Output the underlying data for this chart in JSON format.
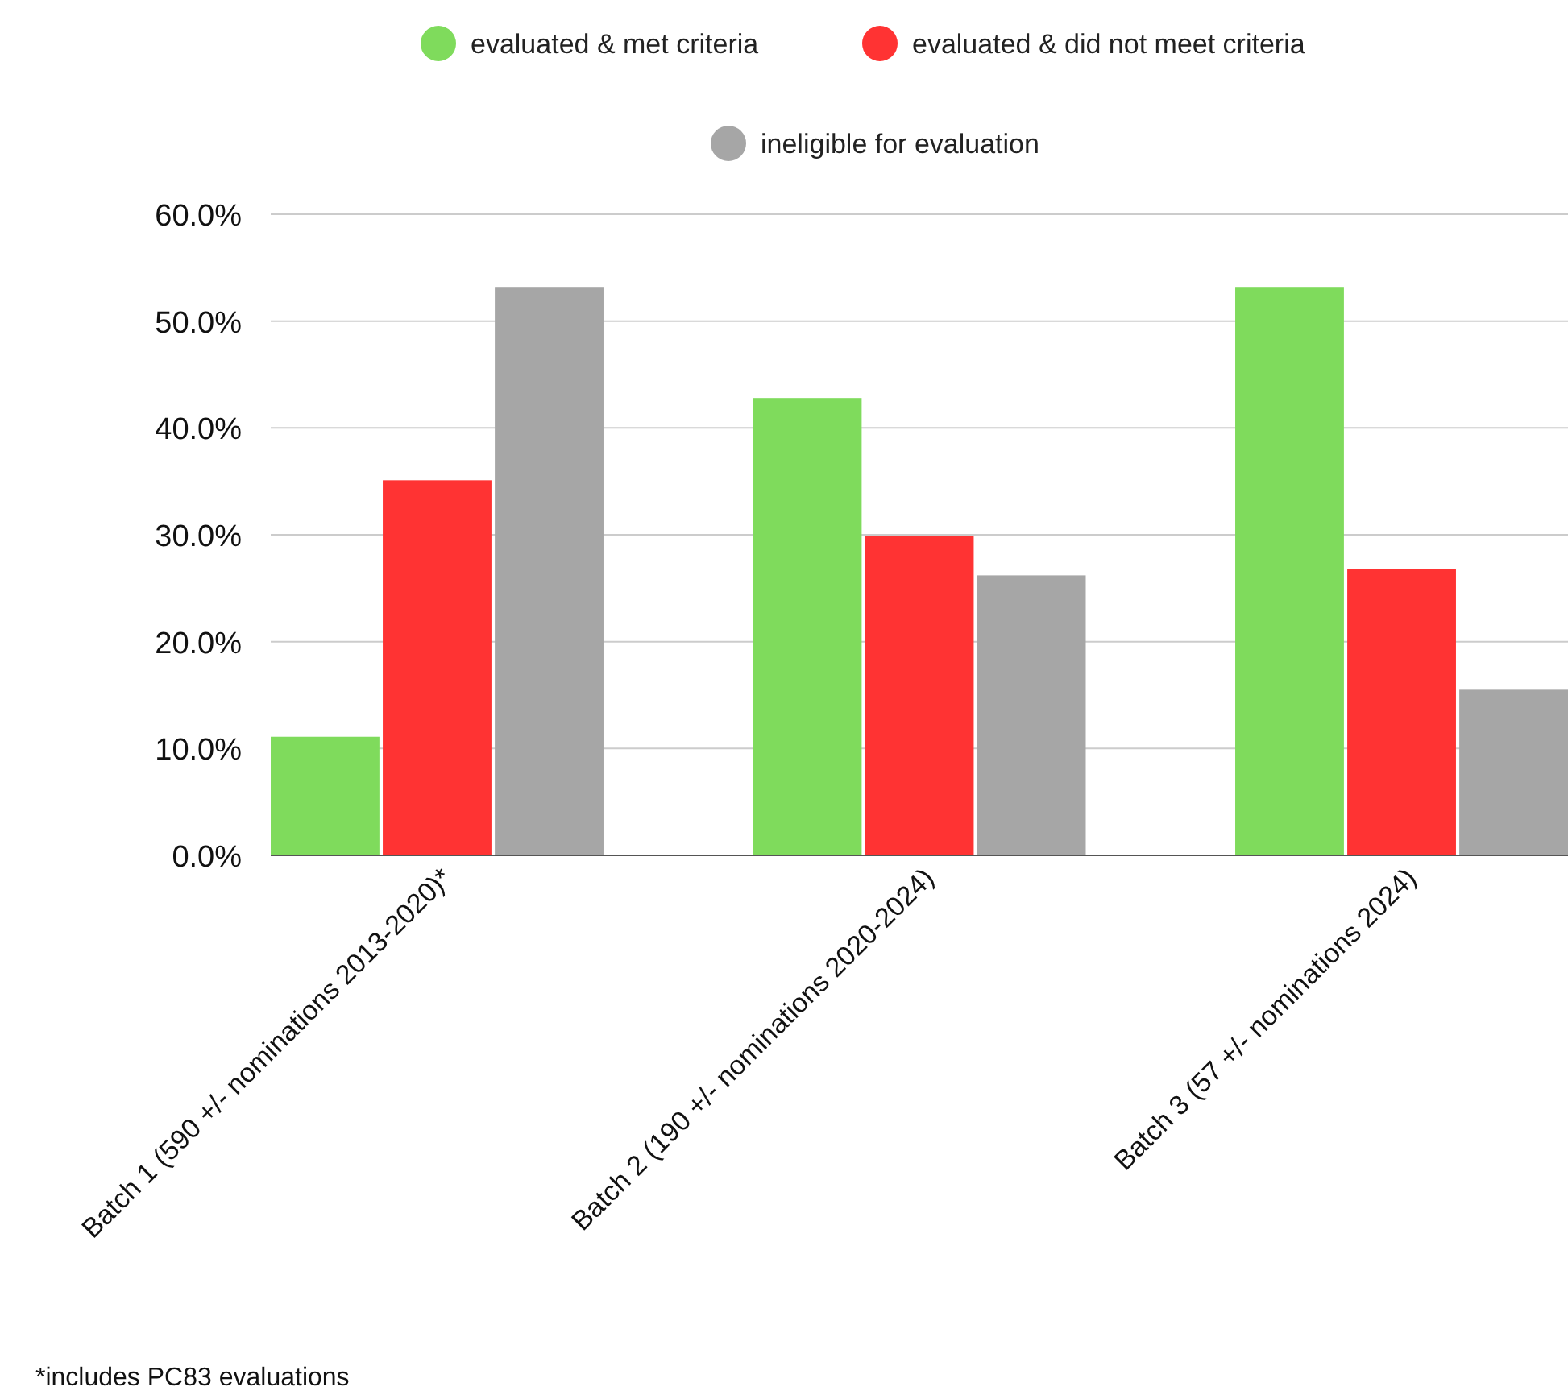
{
  "chart_data": {
    "type": "bar",
    "categories": [
      "Batch 1 (590 +/- nominations 2013-2020)*",
      "Batch 2 (190 +/- nominations 2020-2024)",
      "Batch 3 (57 +/- nominations 2024)"
    ],
    "series": [
      {
        "name": "evaluated & met criteria",
        "color": "#7fdb5c",
        "values": [
          11.1,
          42.8,
          53.2
        ]
      },
      {
        "name": "evaluated & did not meet criteria",
        "color": "#ff3333",
        "values": [
          35.1,
          29.9,
          26.8
        ]
      },
      {
        "name": "ineligible for evaluation",
        "color": "#a6a6a6",
        "values": [
          53.2,
          26.2,
          15.5
        ]
      }
    ],
    "ylim": [
      0,
      60
    ],
    "yticks": [
      {
        "value": 0,
        "label": "0.0%"
      },
      {
        "value": 10,
        "label": "10.0%"
      },
      {
        "value": 20,
        "label": "20.0%"
      },
      {
        "value": 30,
        "label": "30.0%"
      },
      {
        "value": 40,
        "label": "40.0%"
      },
      {
        "value": 50,
        "label": "50.0%"
      },
      {
        "value": 60,
        "label": "60.0%"
      }
    ],
    "grid": "y",
    "legend": "top",
    "annotations": [
      "*includes PC83 evaluations"
    ]
  }
}
